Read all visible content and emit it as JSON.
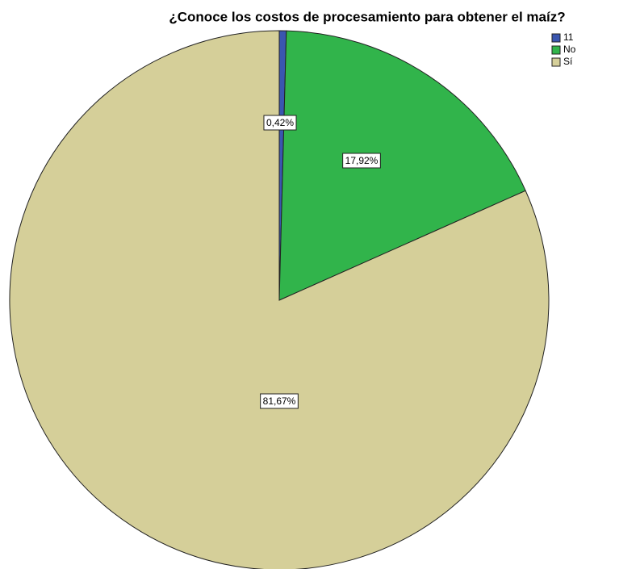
{
  "chart_data": {
    "type": "pie",
    "title": "¿Conoce los costos de procesamiento para obtener el maíz?",
    "categories": [
      "11",
      "No",
      "Sí"
    ],
    "values": [
      0.42,
      17.92,
      81.67
    ],
    "value_labels": [
      "0,42%",
      "17,92%",
      "81,67%"
    ],
    "colors": [
      "#3a56b0",
      "#31b44b",
      "#d5cf99"
    ],
    "legend": "top-right"
  }
}
